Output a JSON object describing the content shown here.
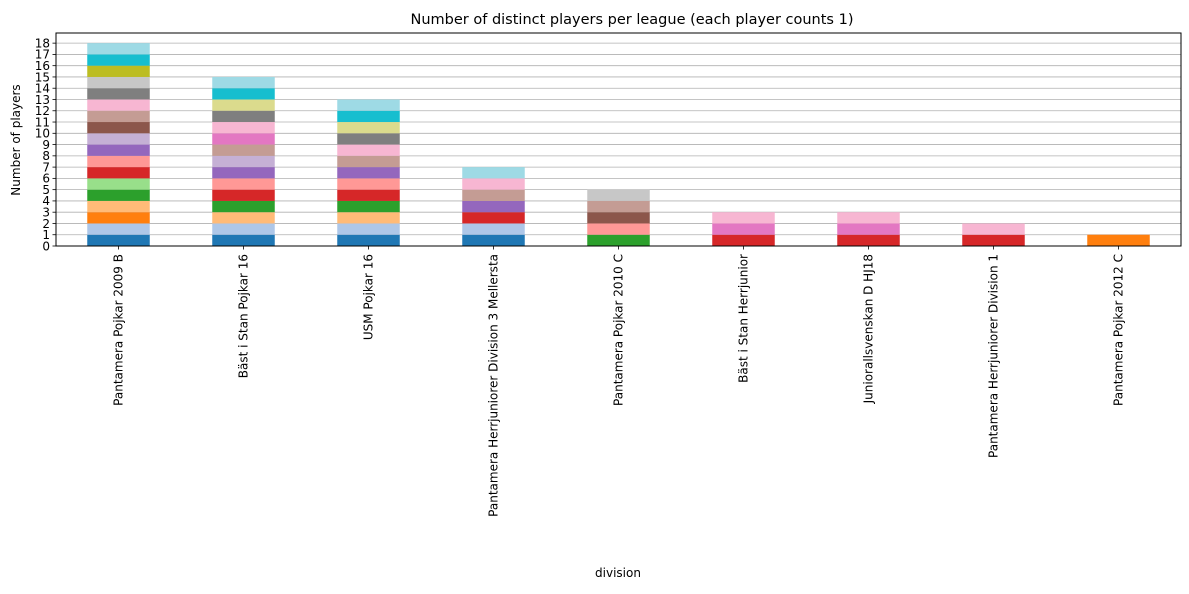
{
  "chart_data": {
    "type": "bar",
    "stacked": true,
    "title": "Number of distinct players per league (each player counts 1)",
    "xlabel": "division",
    "ylabel": "Number of players",
    "ylim": [
      0,
      18.9
    ],
    "yticks": [
      0,
      1,
      2,
      3,
      4,
      5,
      6,
      7,
      8,
      9,
      10,
      11,
      12,
      13,
      14,
      15,
      16,
      17,
      18
    ],
    "grid": "y",
    "legend": "none",
    "categories": [
      "Pantamera Pojkar 2009 B",
      "Bäst i Stan Pojkar 16",
      "USM Pojkar 16",
      "Pantamera Herrjuniorer Division 3 Mellersta",
      "Pantamera Pojkar 2010 C",
      "Bäst i Stan Herrjunior",
      "Juniorallsvenskan D HJ18",
      "Pantamera Herrjuniorer Division 1",
      "Pantamera Pojkar 2012 C"
    ],
    "totals": [
      18,
      15,
      13,
      7,
      5,
      3,
      3,
      2,
      1
    ],
    "segment_colors": [
      [
        "#1f77b4",
        "#aec7e8",
        "#ff7f0e",
        "#ffbb78",
        "#2ca02c",
        "#98df8a",
        "#d62728",
        "#ff9896",
        "#9467bd",
        "#c5b0d5",
        "#8c564b",
        "#c49c94",
        "#f7b6d2",
        "#7f7f7f",
        "#c7c7c7",
        "#bcbd22",
        "#17becf",
        "#9edae5"
      ],
      [
        "#1f77b4",
        "#aec7e8",
        "#ffbb78",
        "#2ca02c",
        "#d62728",
        "#ff9896",
        "#9467bd",
        "#c5b0d5",
        "#c49c94",
        "#e377c2",
        "#f7b6d2",
        "#7f7f7f",
        "#dbdb8d",
        "#17becf",
        "#9edae5"
      ],
      [
        "#1f77b4",
        "#aec7e8",
        "#ffbb78",
        "#2ca02c",
        "#d62728",
        "#ff9896",
        "#9467bd",
        "#c49c94",
        "#f7b6d2",
        "#7f7f7f",
        "#dbdb8d",
        "#17becf",
        "#9edae5"
      ],
      [
        "#1f77b4",
        "#aec7e8",
        "#d62728",
        "#9467bd",
        "#c49c94",
        "#f7b6d2",
        "#9edae5"
      ],
      [
        "#2ca02c",
        "#ff9896",
        "#8c564b",
        "#c49c94",
        "#c7c7c7"
      ],
      [
        "#d62728",
        "#e377c2",
        "#f7b6d2"
      ],
      [
        "#d62728",
        "#e377c2",
        "#f7b6d2"
      ],
      [
        "#d62728",
        "#f7b6d2"
      ],
      [
        "#ff7f0e"
      ]
    ]
  }
}
